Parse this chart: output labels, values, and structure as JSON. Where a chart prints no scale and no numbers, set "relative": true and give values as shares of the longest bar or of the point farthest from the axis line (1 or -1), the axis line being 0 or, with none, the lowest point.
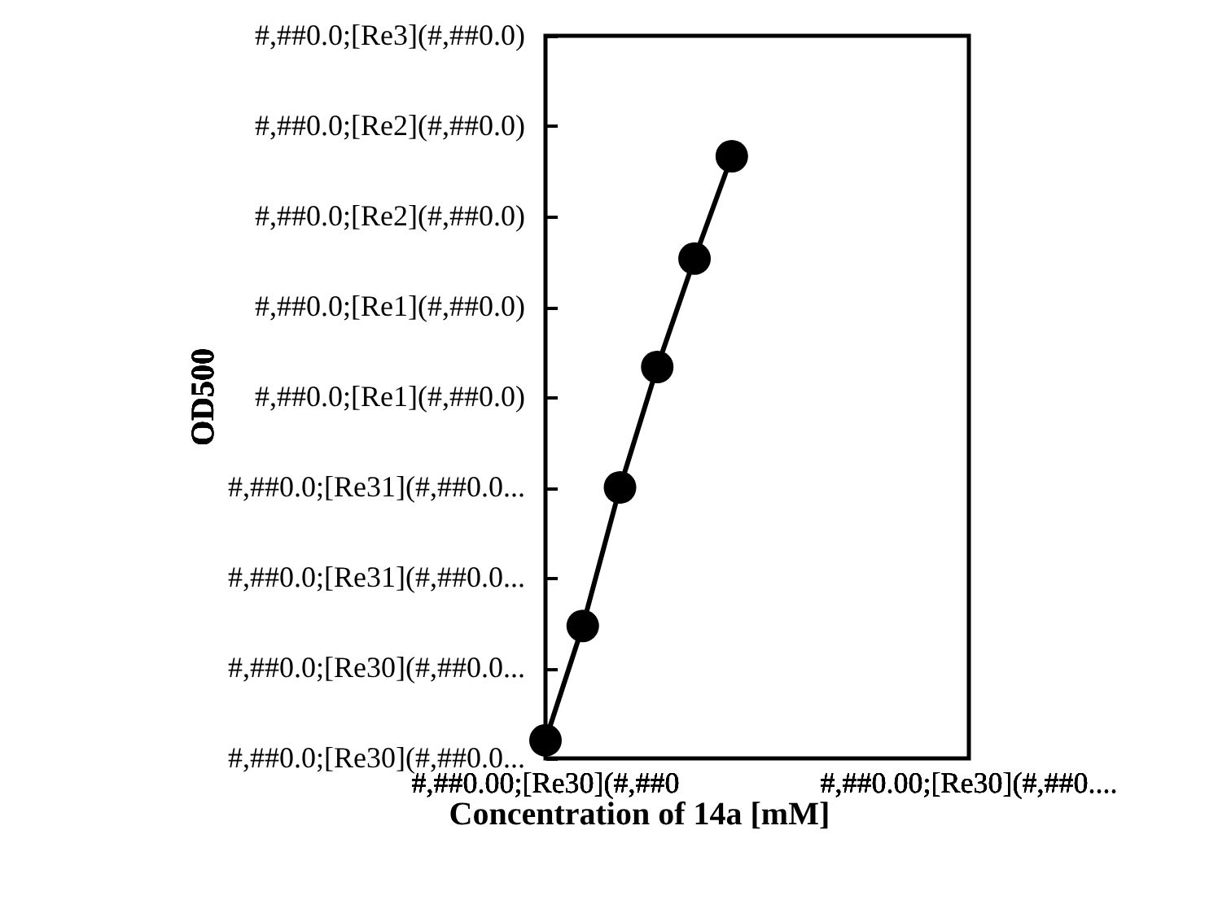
{
  "chart_data": {
    "type": "line",
    "xlabel": "Concentration of 14a [mM]",
    "categories": [
      null,
      null,
      null,
      null,
      null,
      null
    ],
    "series": [
      {
        "color": "#000000",
        "values": [
          0.03,
          0.22,
          0.45,
          0.65,
          0.83,
          1.0
        ]
      }
    ],
    "relative": true,
    "grid": false,
    "marker": "circle",
    "line_style": "solid",
    "annotations": [
      "#,##0.0;[Re30](#,##0.0...",
      "#,##0.0;[Re30](#,##0.0...",
      "#,##0.0;[Re31](#,##0.0...",
      "#,##0.0;[Re31](#,##0.0...",
      "#,##0.0;[Re1](#,##0.0)",
      "#,##0.0;[Re1](#,##0.0)",
      "#,##0.0;[Re2](#,##0.0)",
      "#,##0.0;[Re2](#,##0.0)",
      "#,##0.0;[Re3](#,##0.0)",
      "#,##0.00;[Re30](#,##0",
      "#,##0.00;[Re30](#,##0....",
      "OD500"
    ]
  }
}
